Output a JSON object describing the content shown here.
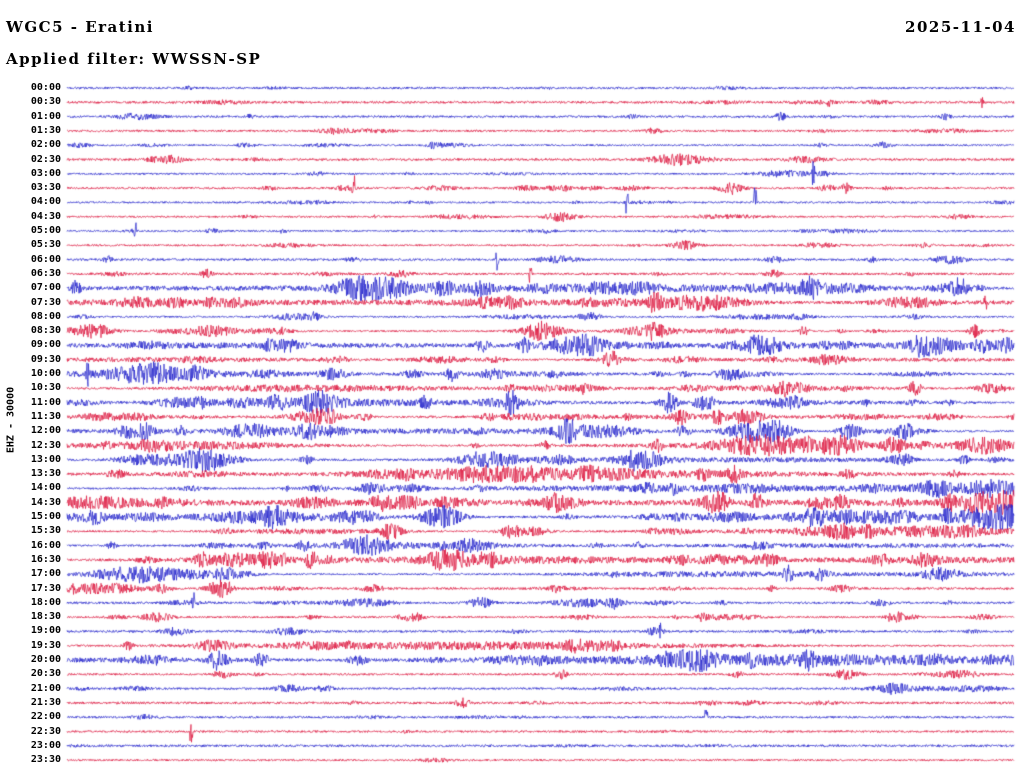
{
  "header": {
    "title": "WGC5 - Eratini",
    "date": "2025-11-04",
    "filter": "Applied filter: WWSSN-SP"
  },
  "chart_data": {
    "type": "line",
    "subtype": "helicorder",
    "title": "WGC5 - Eratini",
    "date": "2025-11-04",
    "filter": "WWSSN-SP",
    "ylabel": "EHZ - 30000",
    "station": "WGC5",
    "location": "Eratini",
    "channel": "EHZ",
    "amplitude_scale": 30000,
    "minutes_per_line": 30,
    "time_range": [
      "00:00",
      "23:30"
    ],
    "trace_colors": {
      "blue": "#2222cc",
      "red": "#dc143c"
    },
    "background": "#ffffff",
    "legend": "none",
    "grid": "off",
    "description": "48 half-hour seismogram trace lines, alternating blue and red, showing continuous background noise with intermittent earthquake/event bursts; midday lines (10:00-17:30) are markedly more active; a prominent tall spike occurs on the 04:00 line near 73% of the line width; late lines (22:30-23:30) are quiet with isolated bursts.",
    "rows": [
      {
        "time": "00:00",
        "color": "blue"
      },
      {
        "time": "00:30",
        "color": "red"
      },
      {
        "time": "01:00",
        "color": "blue"
      },
      {
        "time": "01:30",
        "color": "red"
      },
      {
        "time": "02:00",
        "color": "blue"
      },
      {
        "time": "02:30",
        "color": "red"
      },
      {
        "time": "03:00",
        "color": "blue"
      },
      {
        "time": "03:30",
        "color": "red"
      },
      {
        "time": "04:00",
        "color": "blue"
      },
      {
        "time": "04:30",
        "color": "red"
      },
      {
        "time": "05:00",
        "color": "blue"
      },
      {
        "time": "05:30",
        "color": "red"
      },
      {
        "time": "06:00",
        "color": "blue"
      },
      {
        "time": "06:30",
        "color": "red"
      },
      {
        "time": "07:00",
        "color": "blue"
      },
      {
        "time": "07:30",
        "color": "red"
      },
      {
        "time": "08:00",
        "color": "blue"
      },
      {
        "time": "08:30",
        "color": "red"
      },
      {
        "time": "09:00",
        "color": "blue"
      },
      {
        "time": "09:30",
        "color": "red"
      },
      {
        "time": "10:00",
        "color": "blue"
      },
      {
        "time": "10:30",
        "color": "red"
      },
      {
        "time": "11:00",
        "color": "blue"
      },
      {
        "time": "11:30",
        "color": "red"
      },
      {
        "time": "12:00",
        "color": "blue"
      },
      {
        "time": "12:30",
        "color": "red"
      },
      {
        "time": "13:00",
        "color": "blue"
      },
      {
        "time": "13:30",
        "color": "red"
      },
      {
        "time": "14:00",
        "color": "blue"
      },
      {
        "time": "14:30",
        "color": "red"
      },
      {
        "time": "15:00",
        "color": "blue"
      },
      {
        "time": "15:30",
        "color": "red"
      },
      {
        "time": "16:00",
        "color": "blue"
      },
      {
        "time": "16:30",
        "color": "red"
      },
      {
        "time": "17:00",
        "color": "blue"
      },
      {
        "time": "17:30",
        "color": "red"
      },
      {
        "time": "18:00",
        "color": "blue"
      },
      {
        "time": "18:30",
        "color": "red"
      },
      {
        "time": "19:00",
        "color": "blue"
      },
      {
        "time": "19:30",
        "color": "red"
      },
      {
        "time": "20:00",
        "color": "blue"
      },
      {
        "time": "20:30",
        "color": "red"
      },
      {
        "time": "21:00",
        "color": "blue"
      },
      {
        "time": "21:30",
        "color": "red"
      },
      {
        "time": "22:00",
        "color": "blue"
      },
      {
        "time": "22:30",
        "color": "red"
      },
      {
        "time": "23:00",
        "color": "blue"
      },
      {
        "time": "23:30",
        "color": "red"
      }
    ]
  }
}
